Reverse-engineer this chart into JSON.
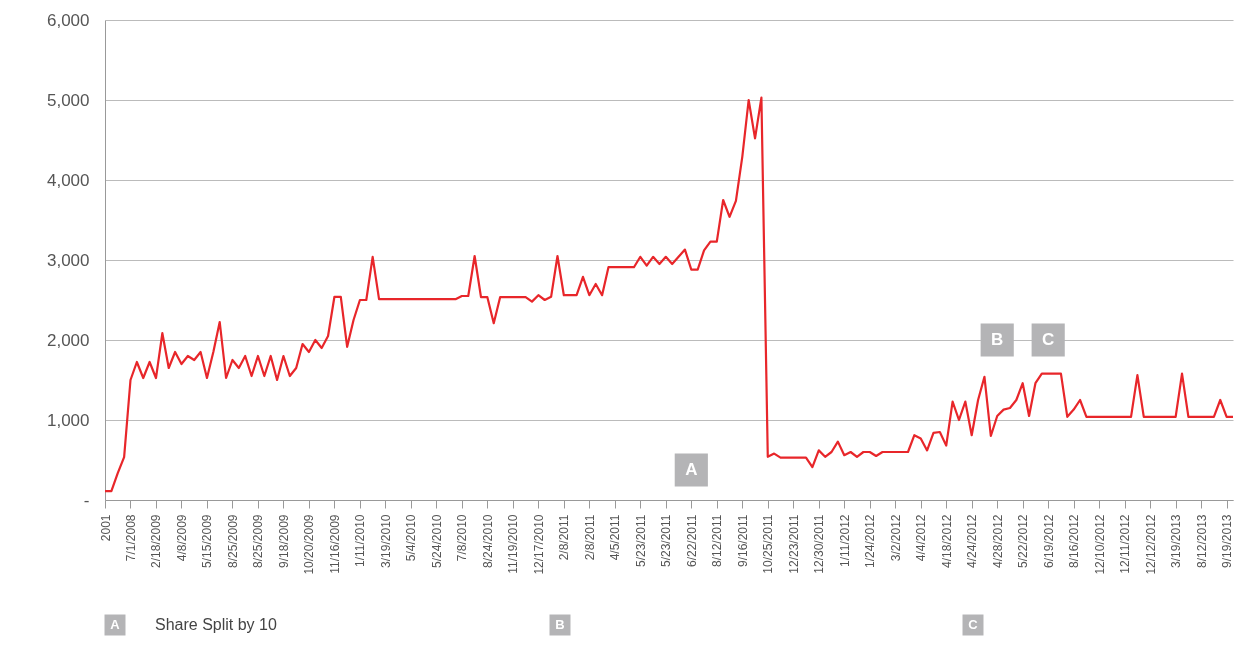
{
  "chart_data": {
    "type": "line",
    "categories": [
      "2001",
      null,
      null,
      null,
      "7/1/2008",
      null,
      null,
      null,
      "2/18/2009",
      null,
      null,
      null,
      "4/8/2009",
      null,
      null,
      null,
      "5/15/2009",
      null,
      null,
      null,
      "8/25/2009",
      null,
      null,
      null,
      "8/25/2009",
      null,
      null,
      null,
      "9/18/2009",
      null,
      null,
      null,
      "10/20/2009",
      null,
      null,
      null,
      "11/16/2009",
      null,
      null,
      null,
      "1/11/2010",
      null,
      null,
      null,
      "3/19/2010",
      null,
      null,
      null,
      "5/4/2010",
      null,
      null,
      null,
      "5/24/2010",
      null,
      null,
      null,
      "7/8/2010",
      null,
      null,
      null,
      "8/24/2010",
      null,
      null,
      null,
      "11/19/2010",
      null,
      null,
      null,
      "12/17/2010",
      null,
      null,
      null,
      "2/8/2011",
      null,
      null,
      null,
      "2/8/2011",
      null,
      null,
      null,
      "4/5/2011",
      null,
      null,
      null,
      "5/23/2011",
      null,
      null,
      null,
      "5/23/2011",
      null,
      null,
      null,
      "6/22/2011",
      null,
      null,
      null,
      "8/12/2011",
      null,
      null,
      null,
      "9/16/2011",
      null,
      null,
      null,
      "10/25/2011",
      null,
      null,
      null,
      "12/23/2011",
      null,
      null,
      null,
      "12/30/2011",
      null,
      null,
      null,
      "1/11/2012",
      null,
      null,
      null,
      "1/24/2012",
      null,
      null,
      null,
      "3/2/2012",
      null,
      null,
      null,
      "4/4/2012",
      null,
      null,
      null,
      "4/18/2012",
      null,
      null,
      null,
      "4/24/2012",
      null,
      null,
      null,
      "4/28/2012",
      null,
      null,
      null,
      "5/22/2012",
      null,
      null,
      null,
      "6/19/2012",
      null,
      null,
      null,
      "8/16/2012",
      null,
      null,
      null,
      "12/10/2012",
      null,
      null,
      null,
      "12/11/2012",
      null,
      null,
      null,
      "12/12/2012",
      null,
      null,
      null,
      "3/19/2013",
      null,
      null,
      null,
      "8/12/2013",
      null,
      null,
      null,
      "9/19/2013",
      null
    ],
    "series": [
      {
        "color": "#e8262a",
        "values": [
          112,
          112,
          337,
          537,
          1500,
          1725,
          1525,
          1725,
          1525,
          2085,
          1650,
          1850,
          1700,
          1800,
          1750,
          1850,
          1525,
          1850,
          2225,
          1525,
          1750,
          1650,
          1800,
          1550,
          1800,
          1550,
          1800,
          1500,
          1800,
          1550,
          1650,
          1950,
          1850,
          2000,
          1900,
          2050,
          2540,
          2540,
          1915,
          2250,
          2500,
          2500,
          3040,
          2510,
          2510,
          2510,
          2510,
          2510,
          2510,
          2510,
          2510,
          2510,
          2510,
          2510,
          2510,
          2510,
          2550,
          2550,
          3050,
          2535,
          2535,
          2210,
          2535,
          2535,
          2535,
          2535,
          2535,
          2480,
          2560,
          2500,
          2540,
          3050,
          2560,
          2560,
          2560,
          2790,
          2560,
          2700,
          2560,
          2910,
          2910,
          2910,
          2910,
          2910,
          3040,
          2930,
          3040,
          2950,
          3040,
          2950,
          3040,
          3130,
          2880,
          2880,
          3120,
          3230,
          3230,
          3750,
          3540,
          3740,
          4290,
          5000,
          4520,
          5030,
          540,
          580,
          530,
          530,
          530,
          530,
          530,
          410,
          620,
          540,
          600,
          730,
          560,
          600,
          540,
          600,
          600,
          550,
          600,
          600,
          600,
          600,
          600,
          810,
          770,
          620,
          840,
          850,
          680,
          1230,
          1000,
          1230,
          810,
          1250,
          1540,
          800,
          1050,
          1130,
          1150,
          1250,
          1460,
          1050,
          1460,
          1580,
          1580,
          1580,
          1580,
          1040,
          1130,
          1250,
          1040,
          1040,
          1040,
          1040,
          1040,
          1040,
          1040,
          1040,
          1560,
          1040,
          1040,
          1040,
          1040,
          1040,
          1040,
          1580,
          1040,
          1040,
          1040,
          1040,
          1040,
          1250,
          1040,
          1040
        ]
      }
    ],
    "ylim": [
      0,
      6000
    ],
    "yticks": [
      {
        "value": 0,
        "label": "-"
      },
      {
        "value": 1000,
        "label": "1,000"
      },
      {
        "value": 2000,
        "label": "2,000"
      },
      {
        "value": 3000,
        "label": "3,000"
      },
      {
        "value": 4000,
        "label": "4,000"
      },
      {
        "value": 5000,
        "label": "5,000"
      },
      {
        "value": 6000,
        "label": "6,000"
      }
    ],
    "grid": "y",
    "annotations": [
      {
        "text": "A",
        "x": "6/22/2011",
        "y": 375
      },
      {
        "text": "B",
        "x": "4/28/2012",
        "y": 2000
      },
      {
        "text": "C",
        "x": "6/19/2012",
        "y": 2000
      },
      "Share Split by 10"
    ]
  }
}
